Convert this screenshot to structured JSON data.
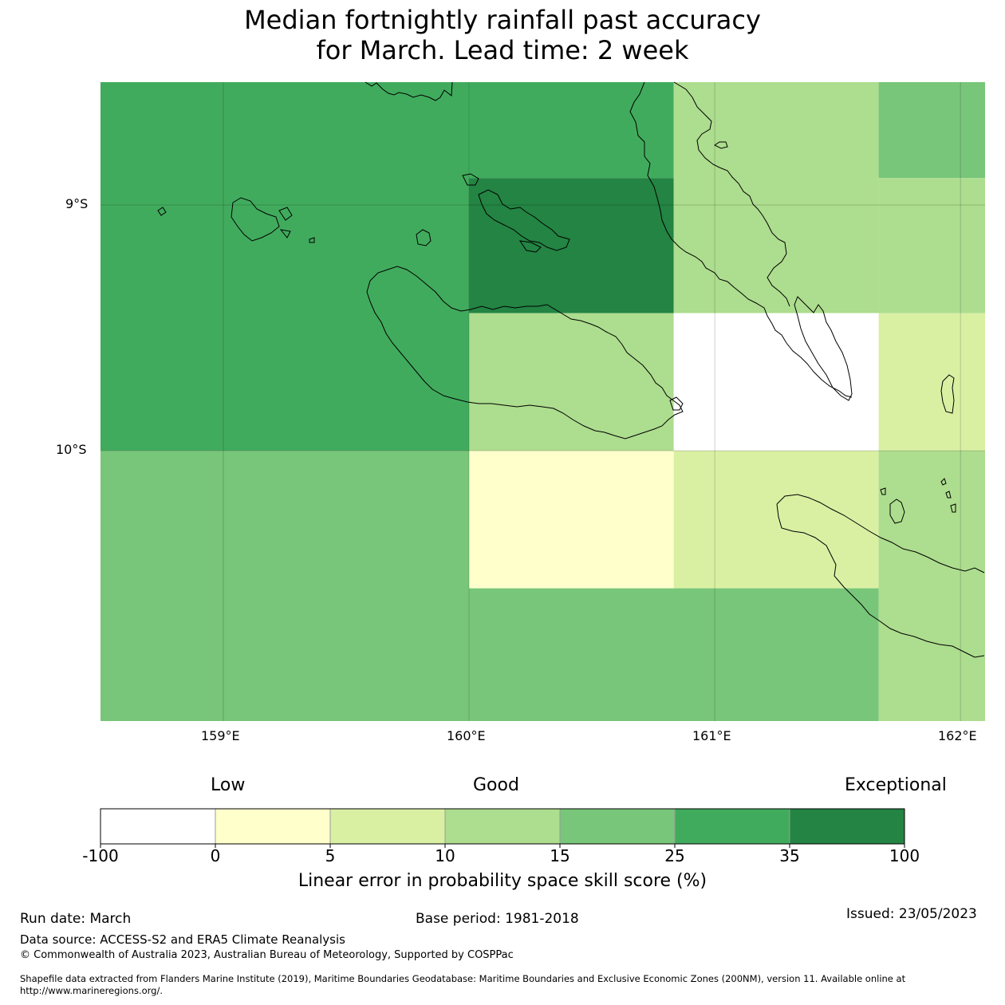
{
  "title": {
    "line1": "Median fortnightly rainfall past accuracy",
    "line2": "for March. Lead time: 2 week"
  },
  "map": {
    "lon_range": [
      158.5,
      162.1
    ],
    "lat_range": [
      -11.1,
      -8.5
    ],
    "grid_cells": [
      {
        "lon": [
          158.5,
          160.0
        ],
        "lat": [
          -10.0,
          -8.5
        ],
        "category": 5
      },
      {
        "lon": [
          160.0,
          160.833
        ],
        "lat": [
          -8.89,
          -8.5
        ],
        "category": 5
      },
      {
        "lon": [
          160.0,
          160.833
        ],
        "lat": [
          -9.44,
          -8.89
        ],
        "category": 6
      },
      {
        "lon": [
          160.0,
          160.833
        ],
        "lat": [
          -10.0,
          -9.44
        ],
        "category": 3
      },
      {
        "lon": [
          160.833,
          161.667
        ],
        "lat": [
          -9.44,
          -8.5
        ],
        "category": 3
      },
      {
        "lon": [
          161.667,
          162.1
        ],
        "lat": [
          -8.89,
          -8.5
        ],
        "category": 4
      },
      {
        "lon": [
          161.667,
          162.1
        ],
        "lat": [
          -9.44,
          -8.89
        ],
        "category": 3
      },
      {
        "lon": [
          160.833,
          161.667
        ],
        "lat": [
          -10.0,
          -9.44
        ],
        "category": 0
      },
      {
        "lon": [
          161.667,
          162.1
        ],
        "lat": [
          -10.0,
          -9.44
        ],
        "category": 2
      },
      {
        "lon": [
          158.5,
          160.0
        ],
        "lat": [
          -11.1,
          -10.0
        ],
        "category": 4
      },
      {
        "lon": [
          160.0,
          160.833
        ],
        "lat": [
          -10.56,
          -10.0
        ],
        "category": 1
      },
      {
        "lon": [
          160.833,
          161.667
        ],
        "lat": [
          -10.56,
          -10.0
        ],
        "category": 2
      },
      {
        "lon": [
          160.0,
          161.667
        ],
        "lat": [
          -11.1,
          -10.56
        ],
        "category": 4
      },
      {
        "lon": [
          161.667,
          162.1
        ],
        "lat": [
          -11.1,
          -10.0
        ],
        "category": 3
      }
    ],
    "gridlines": {
      "lon": [
        159,
        160,
        161,
        162
      ],
      "lat": [
        -9,
        -10
      ]
    },
    "lon_labels": [
      "159°E",
      "160°E",
      "161°E",
      "162°E"
    ],
    "lat_labels": [
      "9°S",
      "10°S"
    ]
  },
  "colorbar": {
    "categories": [
      "Low",
      "Good",
      "Exceptional"
    ],
    "colors": [
      "#ffffff",
      "#ffffcc",
      "#d9f0a3",
      "#addd8e",
      "#78c679",
      "#41ab5d",
      "#238443"
    ],
    "ticks": [
      "-100",
      "0",
      "5",
      "10",
      "15",
      "25",
      "35",
      "100"
    ],
    "label": "Linear error in probability space skill score (%)"
  },
  "footer": {
    "run_date": "Run date: March",
    "base_period": "Base period: 1981-2018",
    "issued": "Issued: 23/05/2023",
    "data_source": "Data source: ACCESS-S2 and ERA5 Climate Reanalysis",
    "copyright": "© Commonwealth of Australia 2023, Australian Bureau of Meteorology, Supported by COSPPac",
    "shapefile_line1": "Shapefile data extracted from Flanders Marine Institute (2019), Maritime Boundaries Geodatabase: Maritime Boundaries and Exclusive Economic Zones (200NM), version 11. Available online at",
    "shapefile_line2": "http://www.marineregions.org/."
  }
}
